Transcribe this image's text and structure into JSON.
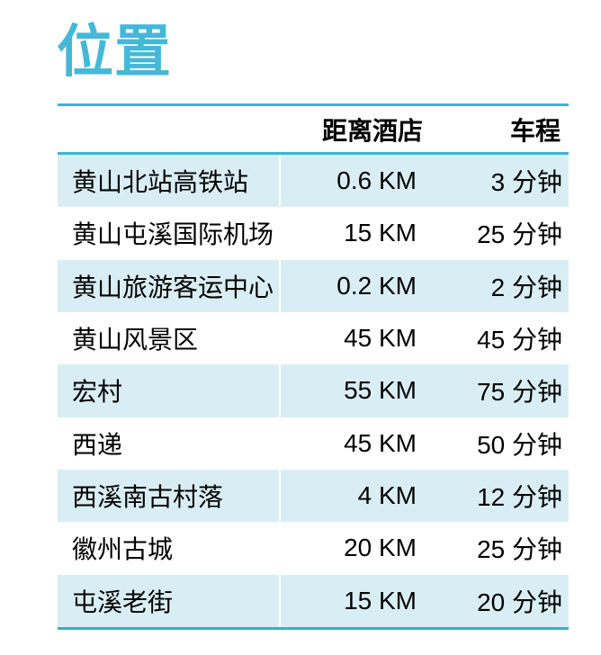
{
  "page": {
    "title": "位置"
  },
  "table": {
    "columns": [
      {
        "label": ""
      },
      {
        "label": "距离酒店"
      },
      {
        "label": "车程"
      }
    ],
    "rows": [
      {
        "place": "黄山北站高铁站",
        "distance": "0.6 KM",
        "drive_time": "3 分钟"
      },
      {
        "place": "黄山屯溪国际机场",
        "distance": "15 KM",
        "drive_time": "25 分钟"
      },
      {
        "place": "黄山旅游客运中心",
        "distance": "0.2 KM",
        "drive_time": "2 分钟"
      },
      {
        "place": "黄山风景区",
        "distance": "45 KM",
        "drive_time": "45 分钟"
      },
      {
        "place": "宏村",
        "distance": "55 KM",
        "drive_time": "75 分钟"
      },
      {
        "place": "西递",
        "distance": "45 KM",
        "drive_time": "50 分钟"
      },
      {
        "place": "西溪南古村落",
        "distance": "4 KM",
        "drive_time": "12 分钟"
      },
      {
        "place": "徽州古城",
        "distance": "20 KM",
        "drive_time": "25 分钟"
      },
      {
        "place": "屯溪老街",
        "distance": "15 KM",
        "drive_time": "20 分钟"
      }
    ]
  },
  "colors": {
    "accent": "#45B8D8",
    "rule": "#3EB2D8",
    "row_shade": "#D9EEF4",
    "text": "#000000"
  }
}
